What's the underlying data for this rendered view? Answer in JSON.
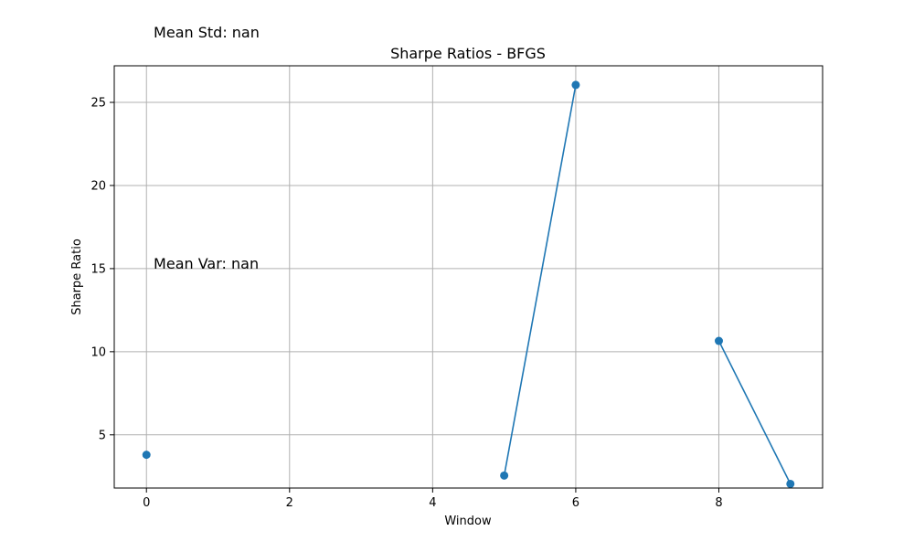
{
  "chart_data": {
    "type": "line",
    "title": "Sharpe Ratios - BFGS",
    "xlabel": "Window",
    "ylabel": "Sharpe Ratio",
    "xlim": [
      -0.45,
      9.45
    ],
    "ylim": [
      1.8,
      27.2
    ],
    "x_ticks": [
      0,
      2,
      4,
      6,
      8
    ],
    "y_ticks": [
      5,
      10,
      15,
      20,
      25
    ],
    "grid": true,
    "marker": "circle",
    "series": [
      {
        "color": "#1f77b4",
        "x": [
          0,
          1,
          2,
          3,
          4,
          5,
          6,
          7,
          8,
          9
        ],
        "values": [
          3.8,
          null,
          null,
          null,
          null,
          2.55,
          26.05,
          null,
          10.65,
          2.05
        ]
      }
    ],
    "annotations": [
      {
        "text": "Mean Std: nan",
        "x": 0.1,
        "y": 28.9
      },
      {
        "text": "Mean Var: nan",
        "x": 0.1,
        "y": 15.0
      }
    ]
  }
}
